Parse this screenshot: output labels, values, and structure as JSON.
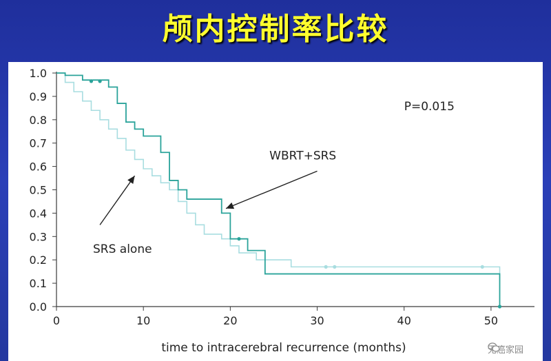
{
  "slide_title": "颅内控制率比较",
  "watermark": "无癌家园",
  "watermark_icon": "wechat-icon",
  "chart_data": {
    "type": "line",
    "line_style": "step",
    "title": "",
    "xlabel": "time to intracerebral recurrence (months)",
    "ylabel": "",
    "xlim": [
      0,
      55
    ],
    "ylim": [
      0,
      1.0
    ],
    "x_ticks": [
      0,
      10,
      20,
      30,
      40,
      50
    ],
    "y_ticks": [
      0.0,
      0.1,
      0.2,
      0.3,
      0.4,
      0.5,
      0.6,
      0.7,
      0.8,
      0.9,
      1.0
    ],
    "y_tick_labels": [
      "0.0",
      "0.1",
      "0.2",
      "0.3",
      "0.4",
      "0.5",
      "0.6",
      "0.7",
      "0.8",
      "0.9",
      "1.0"
    ],
    "grid": false,
    "annotations": [
      {
        "text": "P=0.015",
        "x": 40,
        "y": 0.84
      },
      {
        "text": "WBRT+SRS",
        "x": 24.5,
        "y": 0.63,
        "arrow_to": [
          19.5,
          0.42
        ]
      },
      {
        "text": "SRS alone",
        "x": 4.2,
        "y": 0.23,
        "arrow_from": [
          5,
          0.35
        ],
        "arrow_to": [
          9,
          0.56
        ]
      }
    ],
    "series": [
      {
        "name": "WBRT+SRS",
        "color": "#2aa39a",
        "x": [
          0,
          1,
          3,
          6,
          7,
          8,
          9,
          10,
          12,
          13,
          14,
          15,
          19,
          20,
          22,
          24,
          51,
          51
        ],
        "y": [
          1.0,
          0.99,
          0.97,
          0.94,
          0.87,
          0.79,
          0.76,
          0.73,
          0.66,
          0.54,
          0.5,
          0.46,
          0.4,
          0.29,
          0.24,
          0.14,
          0.14,
          0.0
        ],
        "censored": [
          [
            4,
            0.965
          ],
          [
            5,
            0.965
          ],
          [
            21,
            0.29
          ],
          [
            51,
            0.0
          ]
        ]
      },
      {
        "name": "SRS alone",
        "color": "#a8dde0",
        "x": [
          0,
          1,
          2,
          3,
          4,
          5,
          6,
          7,
          8,
          9,
          10,
          11,
          12,
          13,
          14,
          15,
          16,
          17,
          19,
          20,
          21,
          23,
          27,
          51
        ],
        "y": [
          1.0,
          0.96,
          0.92,
          0.88,
          0.84,
          0.8,
          0.76,
          0.72,
          0.67,
          0.63,
          0.59,
          0.56,
          0.53,
          0.5,
          0.45,
          0.4,
          0.35,
          0.31,
          0.29,
          0.26,
          0.23,
          0.2,
          0.17,
          0.14
        ],
        "censored": [
          [
            31,
            0.17
          ],
          [
            32,
            0.17
          ],
          [
            49,
            0.17
          ]
        ]
      }
    ]
  }
}
